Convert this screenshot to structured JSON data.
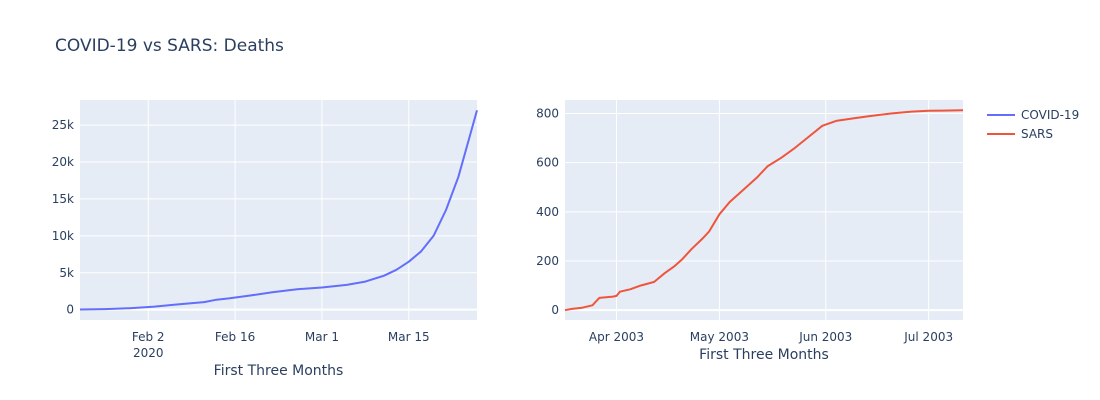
{
  "title": "COVID-19 vs SARS: Deaths",
  "legend": {
    "position": "top-right",
    "items": [
      {
        "name": "COVID-19",
        "color": "#636efa"
      },
      {
        "name": "SARS",
        "color": "#ef553b"
      }
    ]
  },
  "chart_data": [
    {
      "type": "line",
      "xlabel": "First Three Months",
      "ylabel": "",
      "grid": true,
      "xlim": [
        "2020-01-22",
        "2020-03-26"
      ],
      "ylim": [
        -1400,
        28400
      ],
      "x_ticks": [
        {
          "value": "2020-02-02",
          "label": "Feb 2",
          "sublabel": "2020"
        },
        {
          "value": "2020-02-16",
          "label": "Feb 16",
          "sublabel": ""
        },
        {
          "value": "2020-03-01",
          "label": "Mar 1",
          "sublabel": ""
        },
        {
          "value": "2020-03-15",
          "label": "Mar 15",
          "sublabel": ""
        }
      ],
      "y_ticks": [
        {
          "value": 0,
          "label": "0"
        },
        {
          "value": 5000,
          "label": "5k"
        },
        {
          "value": 10000,
          "label": "10k"
        },
        {
          "value": 15000,
          "label": "15k"
        },
        {
          "value": 20000,
          "label": "20k"
        },
        {
          "value": 25000,
          "label": "25k"
        }
      ],
      "series": [
        {
          "name": "COVID-19",
          "color": "#636efa",
          "x": [
            "2020-01-22",
            "2020-01-26",
            "2020-01-30",
            "2020-02-03",
            "2020-02-07",
            "2020-02-11",
            "2020-02-13",
            "2020-02-15",
            "2020-02-18",
            "2020-02-22",
            "2020-02-26",
            "2020-03-01",
            "2020-03-05",
            "2020-03-08",
            "2020-03-11",
            "2020-03-13",
            "2020-03-15",
            "2020-03-17",
            "2020-03-19",
            "2020-03-21",
            "2020-03-23",
            "2020-03-25",
            "2020-03-26"
          ],
          "y": [
            17,
            80,
            200,
            420,
            720,
            1020,
            1350,
            1520,
            1870,
            2350,
            2760,
            3000,
            3350,
            3800,
            4600,
            5400,
            6500,
            7900,
            10000,
            13500,
            18000,
            24000,
            27000
          ]
        }
      ]
    },
    {
      "type": "line",
      "xlabel": "First Three Months",
      "ylabel": "",
      "grid": true,
      "xlim": [
        "2003-03-17",
        "2003-07-11"
      ],
      "ylim": [
        -40,
        855
      ],
      "x_ticks": [
        {
          "value": "2003-04-01",
          "label": "Apr 2003"
        },
        {
          "value": "2003-05-01",
          "label": "May 2003"
        },
        {
          "value": "2003-06-01",
          "label": "Jun 2003"
        },
        {
          "value": "2003-07-01",
          "label": "Jul 2003"
        }
      ],
      "y_ticks": [
        {
          "value": 0,
          "label": "0"
        },
        {
          "value": 200,
          "label": "200"
        },
        {
          "value": 400,
          "label": "400"
        },
        {
          "value": 600,
          "label": "600"
        },
        {
          "value": 800,
          "label": "800"
        }
      ],
      "series": [
        {
          "name": "SARS",
          "color": "#ef553b",
          "x": [
            "2003-03-17",
            "2003-03-19",
            "2003-03-22",
            "2003-03-25",
            "2003-03-26",
            "2003-03-27",
            "2003-03-31",
            "2003-04-01",
            "2003-04-02",
            "2003-04-05",
            "2003-04-08",
            "2003-04-12",
            "2003-04-15",
            "2003-04-18",
            "2003-04-20",
            "2003-04-23",
            "2003-04-26",
            "2003-04-28",
            "2003-05-01",
            "2003-05-04",
            "2003-05-08",
            "2003-05-12",
            "2003-05-15",
            "2003-05-19",
            "2003-05-23",
            "2003-05-27",
            "2003-05-31",
            "2003-06-04",
            "2003-06-09",
            "2003-06-14",
            "2003-06-20",
            "2003-06-26",
            "2003-07-01",
            "2003-07-05",
            "2003-07-11"
          ],
          "y": [
            0,
            5,
            10,
            20,
            35,
            50,
            55,
            58,
            75,
            85,
            100,
            115,
            150,
            180,
            205,
            250,
            290,
            320,
            390,
            440,
            490,
            540,
            585,
            620,
            660,
            705,
            750,
            770,
            780,
            790,
            800,
            808,
            811,
            812,
            813
          ]
        }
      ]
    }
  ]
}
